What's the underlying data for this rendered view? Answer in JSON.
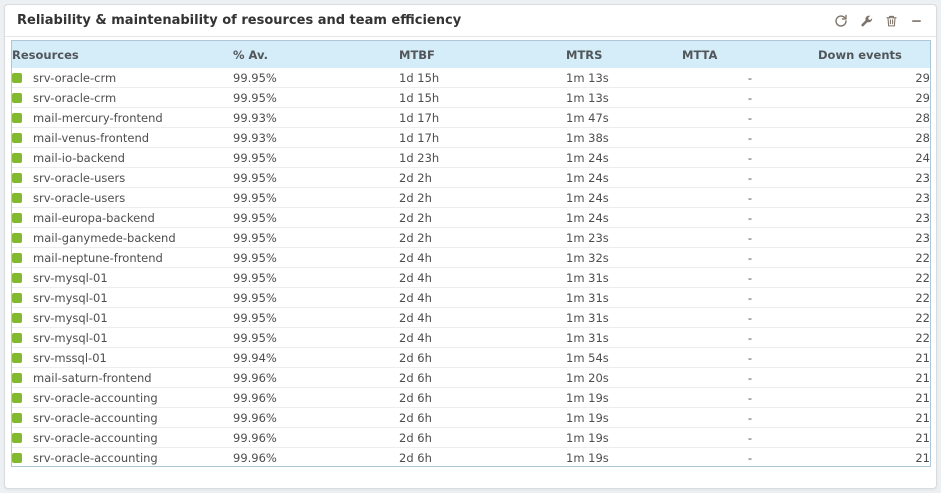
{
  "colors": {
    "status_up": "#82b92e",
    "header_bg": "#d5edf8",
    "table_border": "#abc7d8",
    "text": "#4d4d4d"
  },
  "widget": {
    "title": "Reliability & maintenability of resources and team efficiency",
    "toolbar": {
      "refresh": "refresh",
      "configure": "configure",
      "delete": "delete",
      "minimize": "minimize"
    }
  },
  "table": {
    "columns": [
      "Resources",
      "% Av.",
      "MTBF",
      "MTRS",
      "MTTA",
      "Down events"
    ],
    "rows": [
      {
        "status": "up",
        "resource": "srv-oracle-crm",
        "availability": "99.95%",
        "mtbf": "1d 15h",
        "mtrs": "1m 13s",
        "mtta": "-",
        "down_events": "29"
      },
      {
        "status": "up",
        "resource": "srv-oracle-crm",
        "availability": "99.95%",
        "mtbf": "1d 15h",
        "mtrs": "1m 13s",
        "mtta": "-",
        "down_events": "29"
      },
      {
        "status": "up",
        "resource": "mail-mercury-frontend",
        "availability": "99.93%",
        "mtbf": "1d 17h",
        "mtrs": "1m 47s",
        "mtta": "-",
        "down_events": "28"
      },
      {
        "status": "up",
        "resource": "mail-venus-frontend",
        "availability": "99.93%",
        "mtbf": "1d 17h",
        "mtrs": "1m 38s",
        "mtta": "-",
        "down_events": "28"
      },
      {
        "status": "up",
        "resource": "mail-io-backend",
        "availability": "99.95%",
        "mtbf": "1d 23h",
        "mtrs": "1m 24s",
        "mtta": "-",
        "down_events": "24"
      },
      {
        "status": "up",
        "resource": "srv-oracle-users",
        "availability": "99.95%",
        "mtbf": "2d 2h",
        "mtrs": "1m 24s",
        "mtta": "-",
        "down_events": "23"
      },
      {
        "status": "up",
        "resource": "srv-oracle-users",
        "availability": "99.95%",
        "mtbf": "2d 2h",
        "mtrs": "1m 24s",
        "mtta": "-",
        "down_events": "23"
      },
      {
        "status": "up",
        "resource": "mail-europa-backend",
        "availability": "99.95%",
        "mtbf": "2d 2h",
        "mtrs": "1m 24s",
        "mtta": "-",
        "down_events": "23"
      },
      {
        "status": "up",
        "resource": "mail-ganymede-backend",
        "availability": "99.95%",
        "mtbf": "2d 2h",
        "mtrs": "1m 23s",
        "mtta": "-",
        "down_events": "23"
      },
      {
        "status": "up",
        "resource": "mail-neptune-frontend",
        "availability": "99.95%",
        "mtbf": "2d 4h",
        "mtrs": "1m 32s",
        "mtta": "-",
        "down_events": "22"
      },
      {
        "status": "up",
        "resource": "srv-mysql-01",
        "availability": "99.95%",
        "mtbf": "2d 4h",
        "mtrs": "1m 31s",
        "mtta": "-",
        "down_events": "22"
      },
      {
        "status": "up",
        "resource": "srv-mysql-01",
        "availability": "99.95%",
        "mtbf": "2d 4h",
        "mtrs": "1m 31s",
        "mtta": "-",
        "down_events": "22"
      },
      {
        "status": "up",
        "resource": "srv-mysql-01",
        "availability": "99.95%",
        "mtbf": "2d 4h",
        "mtrs": "1m 31s",
        "mtta": "-",
        "down_events": "22"
      },
      {
        "status": "up",
        "resource": "srv-mysql-01",
        "availability": "99.95%",
        "mtbf": "2d 4h",
        "mtrs": "1m 31s",
        "mtta": "-",
        "down_events": "22"
      },
      {
        "status": "up",
        "resource": "srv-mssql-01",
        "availability": "99.94%",
        "mtbf": "2d 6h",
        "mtrs": "1m 54s",
        "mtta": "-",
        "down_events": "21"
      },
      {
        "status": "up",
        "resource": "mail-saturn-frontend",
        "availability": "99.96%",
        "mtbf": "2d 6h",
        "mtrs": "1m 20s",
        "mtta": "-",
        "down_events": "21"
      },
      {
        "status": "up",
        "resource": "srv-oracle-accounting",
        "availability": "99.96%",
        "mtbf": "2d 6h",
        "mtrs": "1m 19s",
        "mtta": "-",
        "down_events": "21"
      },
      {
        "status": "up",
        "resource": "srv-oracle-accounting",
        "availability": "99.96%",
        "mtbf": "2d 6h",
        "mtrs": "1m 19s",
        "mtta": "-",
        "down_events": "21"
      },
      {
        "status": "up",
        "resource": "srv-oracle-accounting",
        "availability": "99.96%",
        "mtbf": "2d 6h",
        "mtrs": "1m 19s",
        "mtta": "-",
        "down_events": "21"
      },
      {
        "status": "up",
        "resource": "srv-oracle-accounting",
        "availability": "99.96%",
        "mtbf": "2d 6h",
        "mtrs": "1m 19s",
        "mtta": "-",
        "down_events": "21"
      }
    ]
  }
}
